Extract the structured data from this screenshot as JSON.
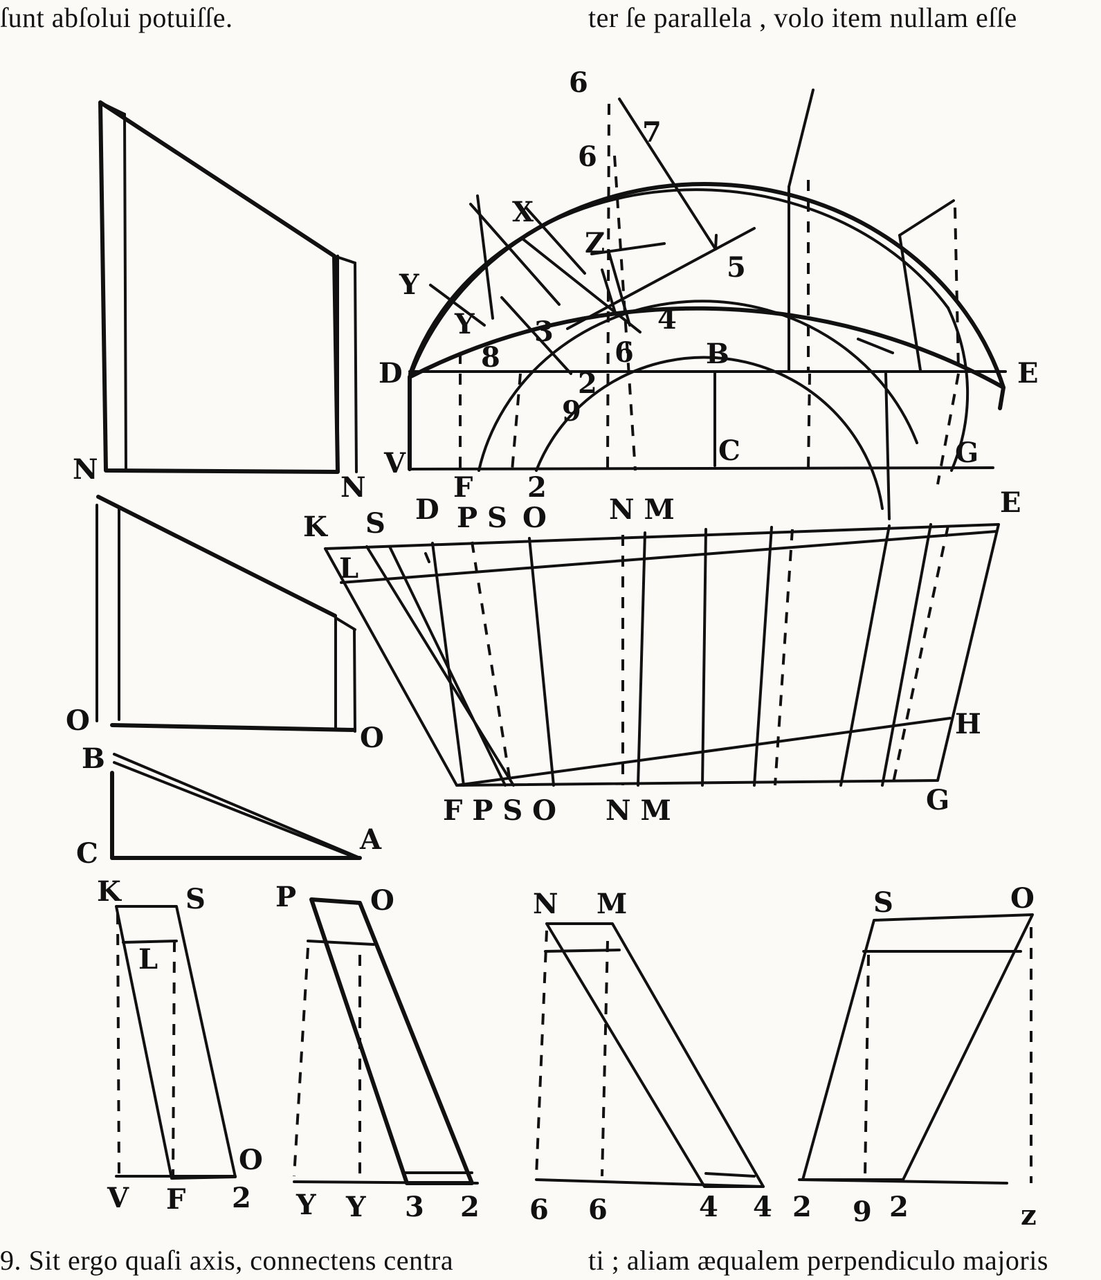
{
  "text": {
    "top_left": "ſunt abſolui potuiſſe.",
    "top_right": "ter ſe parallela , volo item nullam eſſe",
    "bottom_left": "9. Sit ergo quaſi axis, connectens centra",
    "bottom_right": "ti ; aliam æqualem perpendiculo majoris"
  },
  "labels": {
    "fig_a": {
      "n_left": "N",
      "n_right": "N"
    },
    "fig_b": {
      "o_left": "O",
      "o_right": "O"
    },
    "fig_c": {
      "b": "B",
      "c": "C",
      "a": "A"
    },
    "arch": {
      "top_6": "6",
      "inner_6": "6",
      "seven": "7",
      "x": "X",
      "z": "Z",
      "y_outer": "Y",
      "y_inner": "Y",
      "five": "5",
      "four": "4",
      "three": "3",
      "eight": "8",
      "small_6": "6",
      "b": "B",
      "d": "D",
      "e": "E",
      "two": "2",
      "nine": "9",
      "v": "V",
      "c": "C",
      "g": "G"
    },
    "arch_base": {
      "f": "F",
      "two": "2"
    },
    "dev": {
      "n": "N",
      "k": "K",
      "s": "S",
      "d": "D",
      "ps": "P S",
      "o": "O",
      "nm": "N M",
      "e": "E",
      "l": "L",
      "h": "H",
      "g": "G",
      "fpso": "F P S O",
      "nm_bottom": "N M"
    },
    "p1": {
      "k": "K",
      "s": "S",
      "l": "L",
      "o": "O",
      "v": "V",
      "f": "F",
      "two": "2"
    },
    "p2": {
      "p": "P",
      "o": "O",
      "y1": "Y",
      "y2": "Y",
      "three": "3",
      "two": "2"
    },
    "p3": {
      "n": "N",
      "m": "M",
      "six1": "6",
      "six2": "6",
      "four1": "4",
      "four2": "4"
    },
    "p4": {
      "s": "S",
      "o": "O",
      "two1": "2",
      "nine": "9",
      "two2": "2",
      "z": "z"
    }
  }
}
